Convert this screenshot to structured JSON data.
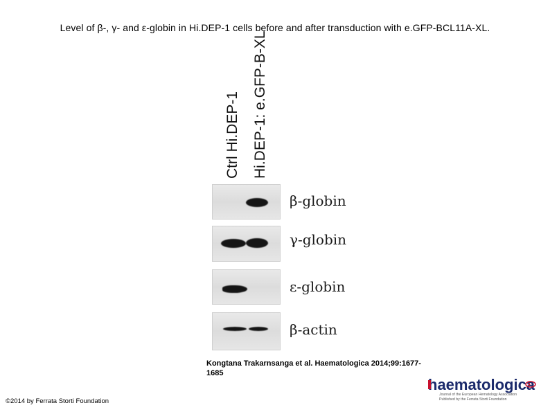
{
  "title": "Level of β-, γ- and ε-globin in Hi.DEP-1 cells before and after transduction with e.GFP-BCL11A-XL.",
  "lanes": [
    "Ctrl Hi.DEP-1",
    "Hi.DEP-1: e.GFP-B-XL"
  ],
  "blots": [
    {
      "label": "β-globin",
      "band_intensity": [
        0,
        1
      ]
    },
    {
      "label": "γ-globin",
      "band_intensity": [
        1,
        1
      ]
    },
    {
      "label": "ε-globin",
      "band_intensity": [
        1,
        0
      ]
    },
    {
      "label": "β-actin",
      "band_intensity": [
        1,
        1
      ]
    }
  ],
  "citation": {
    "line1": "Kongtana Trakarnsanga et al. Haematologica 2014;99:1677-",
    "line2": "1685"
  },
  "copyright": "©2014 by Ferrata Storti Foundation",
  "logo": {
    "name": "haematologica",
    "subtitle_line1": "Journal of the European Hematology Association",
    "subtitle_line2": "Published by the Ferrata Storti Foundation",
    "brand_color": "#1b2a6b",
    "accent_color": "#c8102e"
  }
}
